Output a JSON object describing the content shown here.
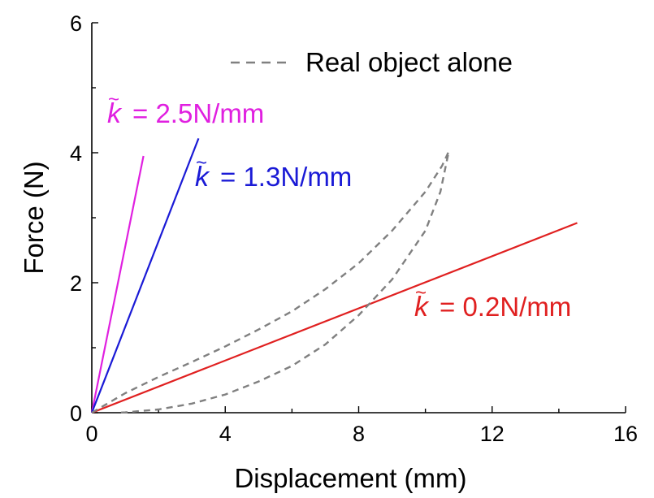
{
  "chart_data": {
    "type": "line",
    "title": "",
    "xlabel": "Displacement (mm)",
    "ylabel": "Force (N)",
    "xlim": [
      0,
      16
    ],
    "ylim": [
      0,
      6
    ],
    "x_ticks": [
      "0",
      "4",
      "8",
      "12",
      "16"
    ],
    "y_ticks": [
      "0",
      "2",
      "4",
      "6"
    ],
    "grid": false,
    "legend": [
      {
        "label": "Real object alone",
        "style": "dashed",
        "color": "#808080",
        "placement": "top-right"
      }
    ],
    "series": [
      {
        "annotation": "= 2.5N/mm",
        "color": "#e020e0",
        "style": "solid",
        "points": [
          [
            0,
            0
          ],
          [
            1.55,
            3.95
          ]
        ]
      },
      {
        "annotation": "= 1.3N/mm",
        "color": "#1a1ad6",
        "style": "solid",
        "points": [
          [
            0,
            0
          ],
          [
            3.2,
            4.22
          ]
        ]
      },
      {
        "annotation": "= 0.2N/mm",
        "color": "#e02020",
        "style": "solid",
        "points": [
          [
            0,
            0
          ],
          [
            14.55,
            2.92
          ]
        ]
      },
      {
        "name": "Real object alone",
        "color": "#808080",
        "style": "dashed",
        "points": [
          [
            0,
            0
          ],
          [
            1,
            0.3
          ],
          [
            2,
            0.55
          ],
          [
            3,
            0.78
          ],
          [
            4,
            1.02
          ],
          [
            5,
            1.28
          ],
          [
            6,
            1.56
          ],
          [
            7,
            1.9
          ],
          [
            8,
            2.3
          ],
          [
            9,
            2.8
          ],
          [
            10,
            3.4
          ],
          [
            10.5,
            3.8
          ],
          [
            10.7,
            4.02
          ],
          [
            10.45,
            3.4
          ],
          [
            10,
            2.8
          ],
          [
            9,
            2.05
          ],
          [
            8,
            1.5
          ],
          [
            7,
            1.05
          ],
          [
            6,
            0.72
          ],
          [
            5,
            0.48
          ],
          [
            4,
            0.28
          ],
          [
            3,
            0.14
          ],
          [
            2,
            0.05
          ],
          [
            1,
            0.005
          ],
          [
            0.8,
            0
          ]
        ]
      }
    ]
  }
}
